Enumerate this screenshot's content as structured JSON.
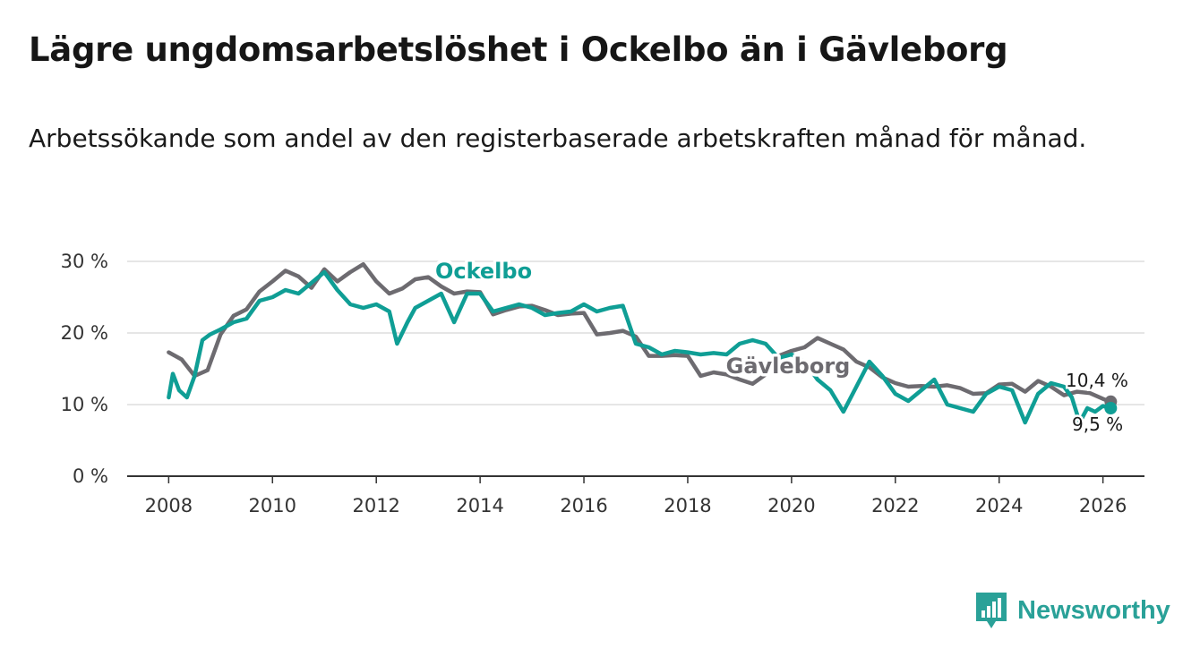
{
  "title": "Lägre ungdomsarbetslöshet i Ockelbo än i Gävleborg",
  "subtitle": "Arbetssökande som andel av den registerbaserade arbetskraften månad för månad.",
  "brand": {
    "name": "Newsworthy"
  },
  "colors": {
    "ockelbo": "#0f9e95",
    "gavleborg": "#6d6b70",
    "grid": "#dddddd",
    "axis": "#333333"
  },
  "chart_data": {
    "type": "line",
    "title": "Lägre ungdomsarbetslöshet i Ockelbo än i Gävleborg",
    "xlabel": "",
    "ylabel": "",
    "xlim": [
      2007.2,
      2026.8
    ],
    "ylim": [
      0,
      30
    ],
    "y_ticks": [
      0,
      10,
      20,
      30
    ],
    "y_tick_labels": [
      "0 %",
      "10 %",
      "20 %",
      "30 %"
    ],
    "x_ticks": [
      2008,
      2010,
      2012,
      2014,
      2016,
      2018,
      2020,
      2022,
      2024,
      2026
    ],
    "x_tick_labels": [
      "2008",
      "2010",
      "2012",
      "2014",
      "2016",
      "2018",
      "2020",
      "2022",
      "2024",
      "2026"
    ],
    "grid": true,
    "series": [
      {
        "name": "Gävleborg",
        "label": "Gävleborg",
        "end_label": "10,4 %",
        "x": [
          2008.0,
          2008.25,
          2008.5,
          2008.75,
          2009.0,
          2009.25,
          2009.5,
          2009.75,
          2010.0,
          2010.25,
          2010.5,
          2010.75,
          2011.0,
          2011.25,
          2011.5,
          2011.75,
          2012.0,
          2012.25,
          2012.5,
          2012.75,
          2013.0,
          2013.25,
          2013.5,
          2013.75,
          2014.0,
          2014.25,
          2014.5,
          2014.75,
          2015.0,
          2015.25,
          2015.5,
          2015.75,
          2016.0,
          2016.25,
          2016.5,
          2016.75,
          2017.0,
          2017.25,
          2017.5,
          2017.75,
          2018.0,
          2018.25,
          2018.5,
          2018.75,
          2019.0,
          2019.25,
          2019.5,
          2019.75,
          2020.0,
          2020.25,
          2020.5,
          2020.75,
          2021.0,
          2021.25,
          2021.5,
          2021.75,
          2022.0,
          2022.25,
          2022.5,
          2022.75,
          2023.0,
          2023.25,
          2023.5,
          2023.75,
          2024.0,
          2024.25,
          2024.5,
          2024.75,
          2025.0,
          2025.25,
          2025.5,
          2025.75,
          2026.0,
          2026.15
        ],
        "values": [
          17.3,
          16.3,
          14.0,
          14.8,
          19.8,
          22.4,
          23.3,
          25.8,
          27.2,
          28.7,
          27.9,
          26.3,
          28.9,
          27.2,
          28.5,
          29.6,
          27.2,
          25.5,
          26.2,
          27.5,
          27.8,
          26.5,
          25.5,
          25.8,
          25.7,
          22.6,
          23.2,
          23.7,
          23.8,
          23.2,
          22.5,
          22.7,
          22.8,
          19.8,
          20.0,
          20.3,
          19.5,
          16.8,
          16.8,
          16.9,
          16.8,
          14.0,
          14.5,
          14.2,
          13.5,
          12.9,
          14.2,
          16.8,
          17.5,
          18.0,
          19.3,
          18.5,
          17.7,
          16.0,
          15.2,
          13.8,
          13.0,
          12.5,
          12.6,
          12.5,
          12.7,
          12.3,
          11.5,
          11.6,
          12.8,
          12.9,
          11.8,
          13.3,
          12.5,
          11.3,
          11.8,
          11.6,
          10.8,
          10.4
        ]
      },
      {
        "name": "Ockelbo",
        "label": "Ockelbo",
        "end_label": "9,5 %",
        "x": [
          2008.0,
          2008.08,
          2008.2,
          2008.35,
          2008.5,
          2008.65,
          2008.8,
          2009.0,
          2009.25,
          2009.5,
          2009.75,
          2010.0,
          2010.25,
          2010.5,
          2010.75,
          2011.0,
          2011.25,
          2011.5,
          2011.75,
          2012.0,
          2012.25,
          2012.4,
          2012.6,
          2012.75,
          2013.0,
          2013.25,
          2013.5,
          2013.75,
          2014.0,
          2014.25,
          2014.5,
          2014.75,
          2015.0,
          2015.25,
          2015.5,
          2015.75,
          2016.0,
          2016.25,
          2016.5,
          2016.75,
          2017.0,
          2017.25,
          2017.5,
          2017.75,
          2018.0,
          2018.25,
          2018.5,
          2018.75,
          2019.0,
          2019.25,
          2019.5,
          2019.75,
          2020.0,
          2020.25,
          2020.5,
          2020.75,
          2021.0,
          2021.25,
          2021.5,
          2021.75,
          2022.0,
          2022.25,
          2022.5,
          2022.75,
          2023.0,
          2023.25,
          2023.5,
          2023.75,
          2024.0,
          2024.25,
          2024.5,
          2024.75,
          2025.0,
          2025.25,
          2025.4,
          2025.55,
          2025.7,
          2025.85,
          2026.0,
          2026.15
        ],
        "values": [
          11.0,
          14.3,
          12.0,
          11.0,
          14.0,
          19.0,
          19.8,
          20.5,
          21.5,
          22.0,
          24.5,
          25.0,
          26.0,
          25.5,
          27.0,
          28.5,
          26.0,
          24.0,
          23.5,
          24.0,
          23.0,
          18.5,
          21.5,
          23.5,
          24.5,
          25.5,
          21.5,
          25.5,
          25.5,
          23.0,
          23.5,
          24.0,
          23.5,
          22.5,
          22.8,
          23.0,
          24.0,
          23.0,
          23.5,
          23.8,
          18.5,
          18.0,
          17.0,
          17.5,
          17.3,
          17.0,
          17.2,
          17.0,
          18.5,
          19.0,
          18.5,
          16.5,
          17.0,
          16.0,
          13.5,
          12.0,
          9.0,
          12.5,
          16.0,
          14.0,
          11.5,
          10.5,
          12.0,
          13.5,
          10.0,
          9.5,
          9.0,
          11.5,
          12.5,
          12.0,
          7.5,
          11.5,
          13.0,
          12.5,
          11.0,
          7.5,
          9.5,
          9.0,
          9.8,
          9.5
        ]
      }
    ]
  }
}
